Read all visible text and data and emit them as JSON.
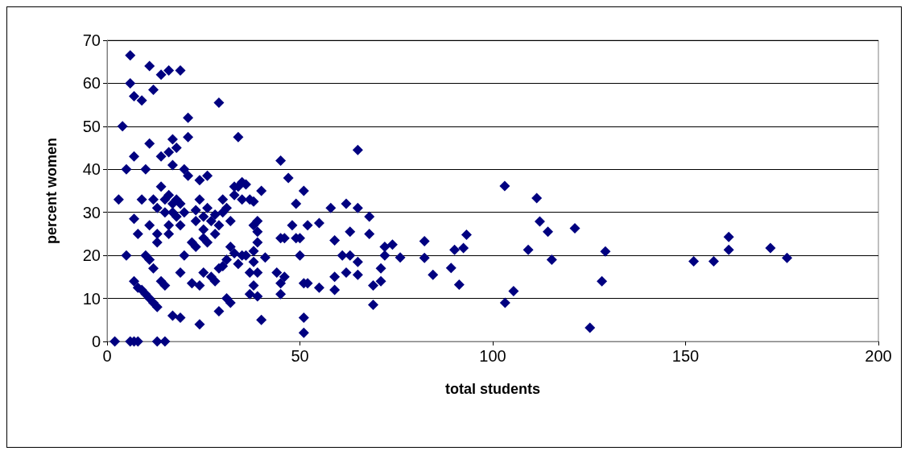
{
  "chart_data": {
    "type": "scatter",
    "xlabel": "total students",
    "ylabel": "percent women",
    "xlim": [
      0,
      200
    ],
    "xticks": [
      0,
      50,
      100,
      150,
      200
    ],
    "ylim": [
      0,
      70
    ],
    "yticks": [
      0,
      10,
      20,
      30,
      40,
      50,
      60,
      70
    ],
    "grid": "y",
    "marker": "diamond",
    "series": [
      {
        "color": "#000080",
        "x": [
          2,
          3,
          4,
          5,
          5,
          6,
          6,
          6,
          7,
          7,
          7,
          7,
          7,
          8,
          8,
          8,
          9,
          9,
          9,
          10,
          10,
          10,
          11,
          11,
          11,
          11,
          11,
          12,
          12,
          12,
          12,
          13,
          13,
          13,
          13,
          13,
          14,
          14,
          14,
          14,
          15,
          15,
          15,
          15,
          16,
          16,
          16,
          16,
          16,
          17,
          17,
          17,
          17,
          17,
          18,
          18,
          18,
          19,
          19,
          19,
          19,
          19,
          20,
          20,
          20,
          21,
          21,
          21,
          22,
          22,
          23,
          23,
          23,
          24,
          24,
          24,
          24,
          25,
          25,
          25,
          25,
          26,
          26,
          26,
          27,
          27,
          28,
          28,
          28,
          29,
          29,
          29,
          29,
          30,
          30,
          30,
          31,
          31,
          31,
          32,
          32,
          32,
          33,
          33,
          33,
          34,
          34,
          34,
          35,
          35,
          35,
          36,
          36,
          37,
          37,
          37,
          38,
          38,
          38,
          38,
          38,
          39,
          39,
          39,
          39,
          39,
          40,
          40,
          41,
          44,
          45,
          45,
          45,
          45,
          46,
          46,
          47,
          48,
          49,
          49,
          50,
          50,
          51,
          51,
          51,
          51,
          52,
          52,
          55,
          55,
          58,
          59,
          59,
          59,
          61,
          62,
          62,
          63,
          63,
          65,
          65,
          65,
          65,
          68,
          68,
          69,
          69,
          71,
          71,
          72,
          72,
          74,
          76,
          82.3,
          82.3,
          84.5,
          89.2,
          90.1,
          91.3,
          92.4,
          93.2,
          103.1,
          111.4,
          112.2,
          114.3,
          109.2,
          115.3,
          121.3,
          129.2,
          128.3,
          125.2,
          105.4,
          103.2,
          152.1,
          157.3,
          161.2,
          161.2,
          172,
          176.3
        ],
        "values": [
          0,
          33,
          50,
          40,
          20,
          60,
          66.5,
          0,
          0,
          43,
          57,
          14,
          28.5,
          25,
          12.5,
          0,
          12,
          33,
          56,
          40,
          20,
          11,
          19,
          10,
          46,
          64,
          27,
          17,
          9,
          33,
          58.5,
          25,
          8,
          23,
          31,
          0,
          62,
          43,
          14,
          36,
          13,
          33,
          0,
          30,
          44,
          63,
          25,
          34,
          27,
          6,
          32,
          47,
          41,
          30,
          29,
          45,
          33,
          5.5,
          63,
          16,
          27,
          32,
          40,
          30,
          20,
          38.5,
          52,
          47.5,
          23,
          13.5,
          22,
          28,
          30.5,
          13,
          4,
          37.5,
          33,
          26,
          24,
          16,
          29,
          38.5,
          23,
          31,
          15,
          28,
          14,
          25,
          29.5,
          55.5,
          27,
          17,
          7,
          30,
          33,
          17.5,
          31,
          19,
          10,
          28,
          22,
          9,
          34,
          36,
          20.5,
          47.5,
          18,
          36,
          20,
          33,
          37,
          36.5,
          20,
          33,
          11,
          16,
          32.5,
          27,
          13,
          18.5,
          21,
          28,
          25.5,
          23,
          10.5,
          16,
          35,
          5,
          19.5,
          16,
          42,
          24,
          13.5,
          11,
          15,
          24,
          38,
          27,
          24,
          32,
          20,
          24,
          35,
          2,
          5.5,
          13.5,
          27,
          13.5,
          27.5,
          12.5,
          31,
          23.5,
          15,
          12,
          20,
          32,
          16,
          25.5,
          20,
          44.5,
          31,
          18.5,
          15.5,
          29,
          25,
          8.5,
          13,
          17,
          14,
          20,
          22,
          22.5,
          19.5,
          23.3,
          19.4,
          15.5,
          17.1,
          21.3,
          13.2,
          21.7,
          24.8,
          36.1,
          33.3,
          27.9,
          25.5,
          21.3,
          19,
          26.3,
          20.9,
          14,
          3.2,
          11.7,
          9,
          18.6,
          18.6,
          24.3,
          21.3,
          21.7,
          19.4
        ]
      }
    ]
  }
}
